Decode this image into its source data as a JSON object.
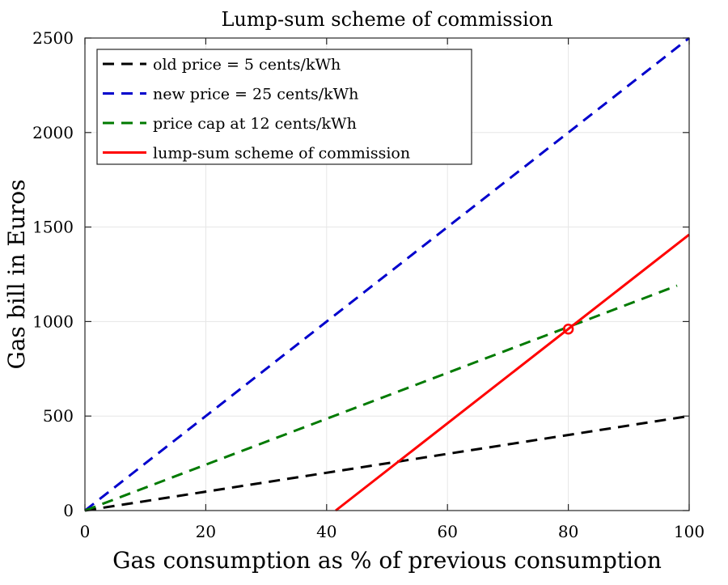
{
  "chart_data": {
    "type": "line",
    "title": "Lump-sum scheme of commission",
    "xlabel": "Gas consumption as % of previous consumption",
    "ylabel": "Gas bill in Euros",
    "xlim": [
      0,
      100
    ],
    "ylim": [
      0,
      2500
    ],
    "xticks": [
      0,
      20,
      40,
      60,
      80,
      100
    ],
    "yticks": [
      0,
      500,
      1000,
      1500,
      2000,
      2500
    ],
    "grid": true,
    "legend_position": "top-left",
    "series": [
      {
        "name": "old price = 5 cents/kWh",
        "color": "#000000",
        "dash": "dashed",
        "x": [
          0,
          100
        ],
        "y": [
          0,
          500
        ]
      },
      {
        "name": "new price = 25 cents/kWh",
        "color": "#0000cc",
        "dash": "dashed",
        "x": [
          0,
          100
        ],
        "y": [
          0,
          2500
        ]
      },
      {
        "name": "price cap at 12 cents/kWh",
        "color": "#007a00",
        "dash": "dashed",
        "x": [
          0,
          98
        ],
        "y": [
          0,
          1190
        ]
      },
      {
        "name": "lump-sum scheme of commission",
        "color": "#ff0000",
        "dash": "solid",
        "x": [
          41.5,
          100
        ],
        "y": [
          0,
          1460
        ]
      }
    ],
    "annotations": [
      {
        "type": "marker",
        "shape": "circle",
        "color": "#ff0000",
        "x": 80,
        "y": 960
      }
    ]
  }
}
